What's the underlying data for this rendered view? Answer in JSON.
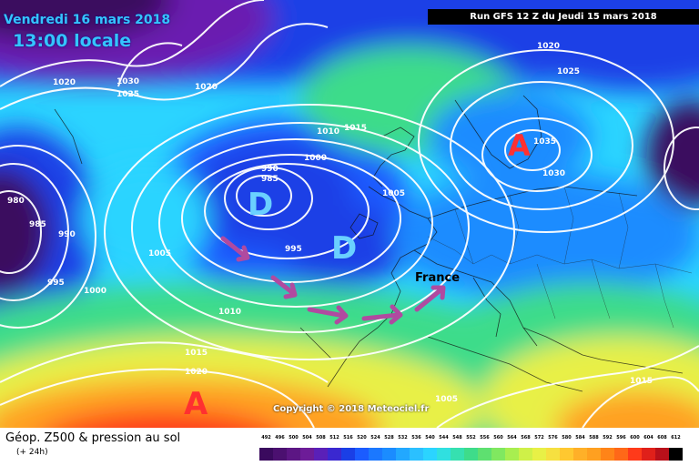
{
  "header": {
    "date": "Vendredi 16 mars 2018",
    "time": "13:00 locale",
    "run": "Run GFS 12 Z du Jeudi 15 mars 2018"
  },
  "map": {
    "labels": {
      "high_label": "A",
      "low_label": "D",
      "country": "France"
    },
    "isobars": [
      "1020",
      "1030",
      "1025",
      "1020",
      "1020",
      "1025",
      "1035",
      "1030",
      "1015",
      "1010",
      "1000",
      "1005",
      "990",
      "985",
      "995",
      "980",
      "985",
      "990",
      "995",
      "1000",
      "1005",
      "1010",
      "1015",
      "1020",
      "1005",
      "1015"
    ],
    "copyright": "Copyright © 2018 Meteociel.fr"
  },
  "legend": {
    "title": "Géop. Z500 & pression au sol",
    "subtitle": "(+ 24h)",
    "scale_values": [
      "492",
      "496",
      "500",
      "504",
      "508",
      "512",
      "516",
      "520",
      "524",
      "528",
      "532",
      "536",
      "540",
      "544",
      "548",
      "552",
      "556",
      "560",
      "564",
      "568",
      "572",
      "576",
      "580",
      "584",
      "588",
      "592",
      "596",
      "600",
      "604",
      "608",
      "612"
    ]
  },
  "colors": {
    "deep_low": "#3a0a5e",
    "blue": "#1a3fe6",
    "mid_blue": "#1b8cff",
    "cyan": "#2bd4ff",
    "green": "#3edc8a",
    "yellow": "#e8f046",
    "orange": "#ffa020",
    "red": "#ff3a1a",
    "arrow": "#b04aa0",
    "high_symbol": "#ff3030",
    "low_symbol": "#6ad0ff"
  }
}
